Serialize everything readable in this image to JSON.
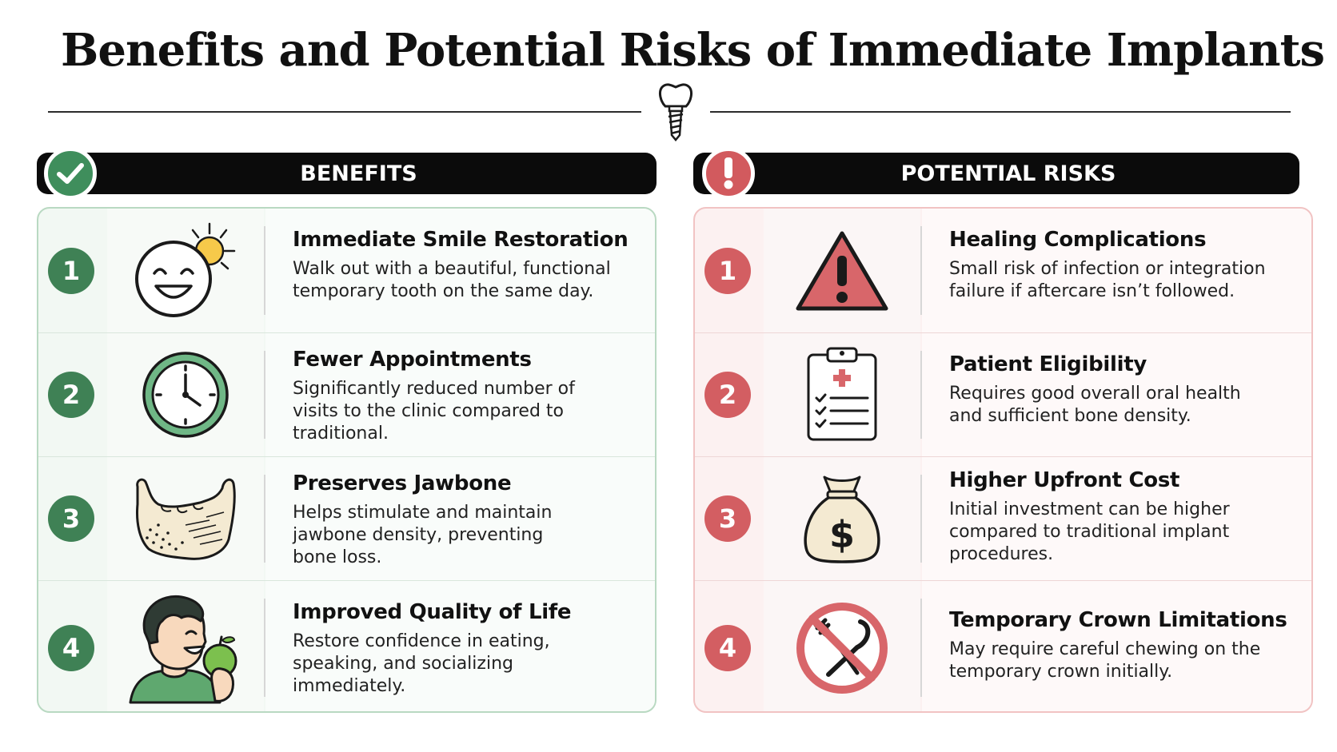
{
  "title": "Benefits and Potential Risks of Immediate Implants",
  "colors": {
    "benefit_accent": "#3f8155",
    "risk_accent": "#d35e62"
  },
  "benefits": {
    "header": "BENEFITS",
    "badge_icon": "checkmark-icon",
    "items": [
      {
        "number": "1",
        "title": "Immediate Smile Restoration",
        "description": "Walk out with a beautiful, functional temporary tooth on the same day.",
        "icon": "smiling-face-sun-icon"
      },
      {
        "number": "2",
        "title": "Fewer Appointments",
        "description": "Significantly reduced number of visits to the clinic compared to traditional.",
        "icon": "clock-icon"
      },
      {
        "number": "3",
        "title": "Preserves Jawbone",
        "description": "Helps stimulate and maintain jawbone density, preventing bone loss.",
        "icon": "jawbone-icon"
      },
      {
        "number": "4",
        "title": "Improved Quality of Life",
        "description": "Restore confidence in eating, speaking, and socializing immediately.",
        "icon": "person-eating-apple-icon"
      }
    ]
  },
  "risks": {
    "header": "POTENTIAL RISKS",
    "badge_icon": "exclamation-icon",
    "items": [
      {
        "number": "1",
        "title": "Healing Complications",
        "description": "Small risk of infection or integration failure if aftercare isn’t followed.",
        "icon": "warning-triangle-icon"
      },
      {
        "number": "2",
        "title": "Patient Eligibility",
        "description": "Requires good overall oral health and sufficient bone density.",
        "icon": "medical-clipboard-icon"
      },
      {
        "number": "3",
        "title": "Higher Upfront Cost",
        "description": "Initial investment can be higher compared to traditional implant procedures.",
        "icon": "money-bag-icon"
      },
      {
        "number": "4",
        "title": "Temporary Crown Limitations",
        "description": "May require careful chewing on the temporary crown initially.",
        "icon": "no-fork-knife-icon"
      }
    ]
  }
}
